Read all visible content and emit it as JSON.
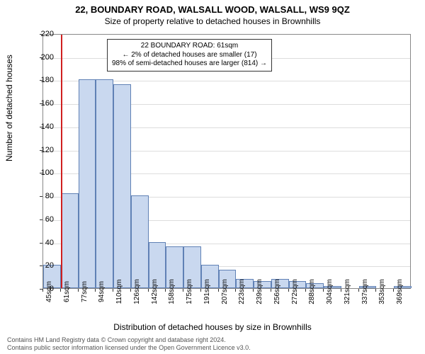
{
  "title": "22, BOUNDARY ROAD, WALSALL WOOD, WALSALL, WS9 9QZ",
  "subtitle": "Size of property relative to detached houses in Brownhills",
  "ylabel": "Number of detached houses",
  "xlabel": "Distribution of detached houses by size in Brownhills",
  "footer_line1": "Contains HM Land Registry data © Crown copyright and database right 2024.",
  "footer_line2": "Contains public sector information licensed under the Open Government Licence v3.0.",
  "chart": {
    "type": "histogram",
    "ylim": [
      0,
      220
    ],
    "ytick_step": 20,
    "xtick_labels": [
      "45sqm",
      "61sqm",
      "77sqm",
      "94sqm",
      "110sqm",
      "126sqm",
      "142sqm",
      "158sqm",
      "175sqm",
      "191sqm",
      "207sqm",
      "223sqm",
      "239sqm",
      "256sqm",
      "272sqm",
      "288sqm",
      "304sqm",
      "321sqm",
      "337sqm",
      "353sqm",
      "369sqm"
    ],
    "values": [
      20,
      82,
      180,
      180,
      176,
      80,
      40,
      36,
      36,
      20,
      16,
      8,
      6,
      8,
      6,
      4,
      2,
      0,
      2,
      0,
      2
    ],
    "bar_fill": "#c9d8ef",
    "bar_border": "#6081b5",
    "grid_color": "#dddddd",
    "background_color": "#ffffff",
    "marker": {
      "bin_index": 1,
      "color": "#d02020"
    },
    "info_box": {
      "line1": "22 BOUNDARY ROAD: 61sqm",
      "line2": "← 2% of detached houses are smaller (17)",
      "line3": "98% of semi-detached houses are larger (814) →"
    },
    "title_fontsize": 13,
    "subtitle_fontsize": 12,
    "axis_label_fontsize": 12,
    "tick_fontsize": 11,
    "xtick_fontsize": 10,
    "info_fontsize": 10
  }
}
